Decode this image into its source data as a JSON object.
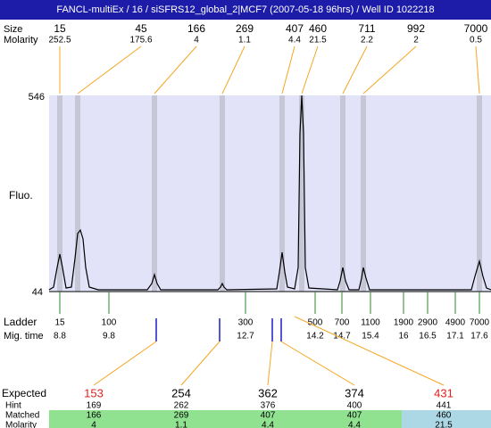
{
  "header": {
    "title": "FANCL-multiEx / 16 / siSFRS12_global_2|MCF7 (2007-05-18 96hrs) / Well ID 1022218"
  },
  "peaks": {
    "size_label": "Size",
    "molarity_label": "Molarity",
    "items": [
      {
        "size": "15",
        "molarity": "252.5"
      },
      {
        "size": "45",
        "molarity": "175.6"
      },
      {
        "size": "166",
        "molarity": "4"
      },
      {
        "size": "269",
        "molarity": "1.1"
      },
      {
        "size": "407",
        "molarity": "4.4"
      },
      {
        "size": "460",
        "molarity": "21.5"
      },
      {
        "size": "711",
        "molarity": "2.2"
      },
      {
        "size": "992",
        "molarity": "2"
      },
      {
        "size": "7000",
        "molarity": "0.5"
      }
    ]
  },
  "plot": {
    "y_top": "546",
    "y_bottom": "44",
    "y_label": "Fluo."
  },
  "ladder": {
    "label": "Ladder",
    "time_label": "Mig. time",
    "items": [
      {
        "size": "15",
        "time": "8.8"
      },
      {
        "size": "100",
        "time": "9.8"
      },
      {
        "size": "300",
        "time": "12.7"
      },
      {
        "size": "500",
        "time": "14.2"
      },
      {
        "size": "700",
        "time": "14.7"
      },
      {
        "size": "1100",
        "time": "15.4"
      },
      {
        "size": "1900",
        "time": "16"
      },
      {
        "size": "2900",
        "time": "16.5"
      },
      {
        "size": "4900",
        "time": "17.1"
      },
      {
        "size": "7000",
        "time": "17.6"
      }
    ]
  },
  "table": {
    "row_labels": [
      "Expected",
      "Hint",
      "Matched",
      "Molarity"
    ],
    "columns": [
      [
        "153",
        "169",
        "166",
        "4"
      ],
      [
        "254",
        "262",
        "269",
        "1.1"
      ],
      [
        "362",
        "376",
        "407",
        "4.4"
      ],
      [
        "374",
        "400",
        "407",
        "4.4"
      ],
      [
        "431",
        "441",
        "460",
        "21.5"
      ]
    ]
  }
}
